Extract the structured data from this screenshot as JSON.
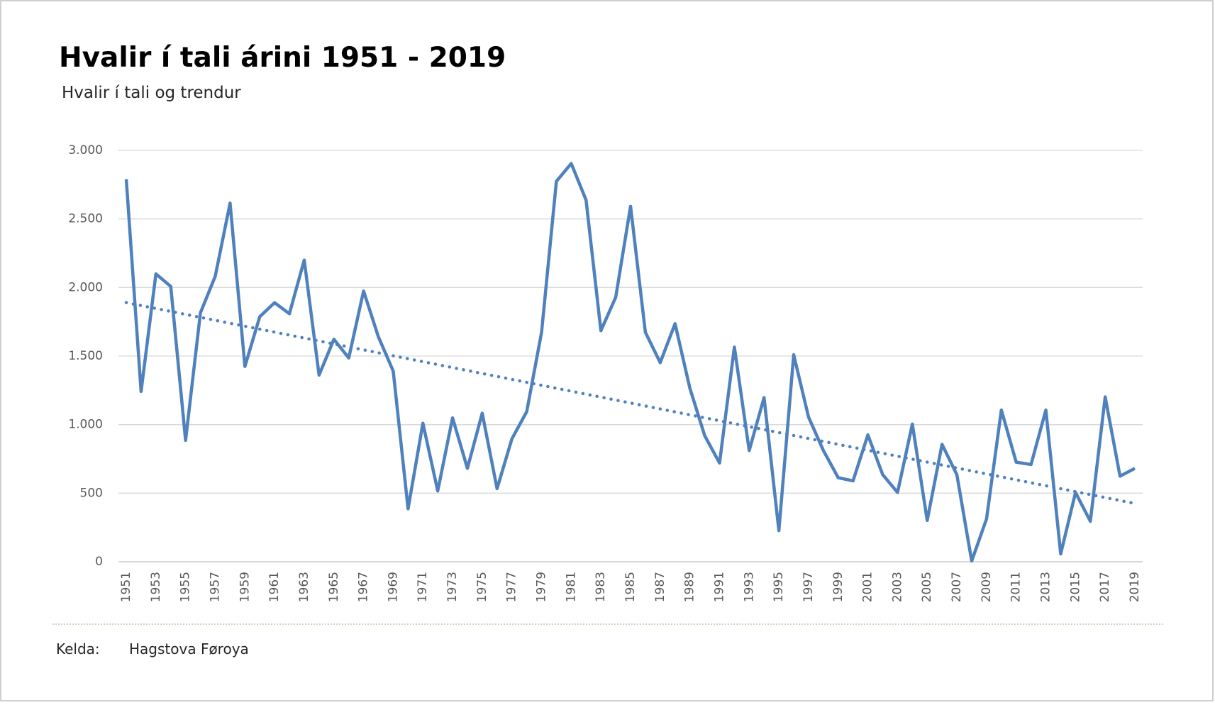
{
  "chart_data": {
    "type": "line",
    "title": "Hvalir í tali árini 1951 - 2019",
    "subtitle": "Hvalir í tali og trendur",
    "source_label": "Kelda:",
    "source": "Hagstova Føroya",
    "categories": [
      "1951",
      null,
      "1953",
      null,
      "1955",
      null,
      "1957",
      null,
      "1959",
      null,
      "1961",
      null,
      "1963",
      null,
      "1965",
      null,
      "1967",
      null,
      "1969",
      null,
      "1971",
      null,
      "1973",
      null,
      "1975",
      null,
      "1977",
      null,
      "1979",
      null,
      "1981",
      null,
      "1983",
      null,
      "1985",
      null,
      "1987",
      null,
      "1989",
      null,
      "1991",
      null,
      "1993",
      null,
      "1995",
      null,
      "1997",
      null,
      "1999",
      null,
      "2001",
      null,
      "2003",
      null,
      "2005",
      null,
      "2007",
      null,
      "2009",
      null,
      "2011",
      null,
      "2013",
      null,
      "2015",
      null,
      "2017",
      null,
      "2019"
    ],
    "series": [
      {
        "color": "#4f81bd",
        "values": [
          2790,
          1242,
          2099,
          2008,
          885,
          1815,
          2082,
          2615,
          1424,
          1787,
          1889,
          1809,
          2200,
          1361,
          1622,
          1486,
          1974,
          1640,
          1390,
          386,
          1010,
          516,
          1049,
          681,
          1083,
          533,
          896,
          1095,
          1673,
          2774,
          2904,
          2638,
          1685,
          1929,
          2592,
          1673,
          1452,
          1736,
          1265,
          919,
          720,
          1565,
          811,
          1197,
          227,
          1509,
          1055,
          811,
          613,
          590,
          925,
          635,
          505,
          1004,
          301,
          856,
          635,
          5,
          312,
          1106,
          726,
          709,
          1106,
          57,
          505,
          295,
          1202,
          624,
          681
        ]
      }
    ],
    "trend": [
      1890,
      425
    ],
    "trend_style": "dotted",
    "ylim": [
      0,
      3000
    ],
    "yticks": [
      0,
      500,
      {
        "value": 1000,
        "label": "1.000"
      },
      {
        "value": 1500,
        "label": "1.500"
      },
      {
        "value": 2000,
        "label": "2.000"
      },
      {
        "value": 2500,
        "label": "2.500"
      },
      {
        "value": 3000,
        "label": "3.000"
      }
    ],
    "grid": true
  }
}
